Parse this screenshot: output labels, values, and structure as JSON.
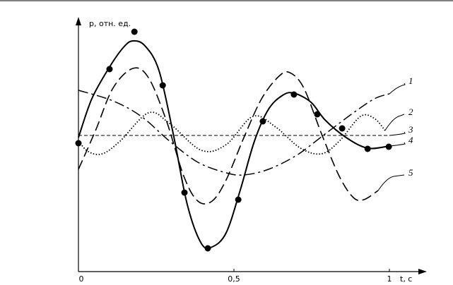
{
  "chart_data": {
    "type": "line",
    "y_label": "p, отн. ед.",
    "x_label": "t, с",
    "xlim": [
      0,
      1.11
    ],
    "ylim": [
      -1.93,
      1.64
    ],
    "xticks": [
      0,
      {
        "value": 0.5,
        "label": "0,5"
      },
      1
    ],
    "series": [
      {
        "name": "1",
        "style": "dashdot",
        "color": "#000000",
        "x": [
          0,
          0.111,
          0.202,
          0.293,
          0.384,
          0.475,
          0.532,
          0.611,
          0.702,
          0.793,
          0.884,
          0.952,
          1.0
        ],
        "values": [
          0.64,
          0.49,
          0.27,
          -0.08,
          -0.38,
          -0.53,
          -0.56,
          -0.48,
          -0.28,
          0.02,
          0.32,
          0.52,
          0.59
        ]
      },
      {
        "name": "2",
        "style": "dotted",
        "color": "#000000",
        "x": [
          0,
          0.032,
          0.077,
          0.134,
          0.225,
          0.293,
          0.395,
          0.475,
          0.561,
          0.634,
          0.714,
          0.782,
          0.839,
          0.907,
          0.952,
          0.986
        ],
        "values": [
          -0.08,
          -0.23,
          -0.26,
          -0.08,
          0.32,
          0.17,
          -0.21,
          -0.13,
          0.27,
          0.12,
          -0.18,
          -0.26,
          -0.08,
          0.27,
          0.24,
          0.07
        ]
      },
      {
        "name": "3",
        "style": "thindash",
        "color": "#000000",
        "x": [
          0,
          1.0
        ],
        "values": [
          0,
          0
        ]
      },
      {
        "name": "4",
        "style": "solid",
        "color": "#000000",
        "x": [
          0,
          0.043,
          0.1,
          0.145,
          0.175,
          0.214,
          0.259,
          0.305,
          0.35,
          0.395,
          0.43,
          0.475,
          0.52,
          0.566,
          0.611,
          0.657,
          0.693,
          0.748,
          0.793,
          0.861,
          0.93,
          1.0
        ],
        "values": [
          -0.03,
          0.52,
          0.97,
          1.25,
          1.34,
          1.27,
          0.92,
          0.02,
          -0.98,
          -1.53,
          -1.58,
          -1.38,
          -0.78,
          -0.08,
          0.37,
          0.57,
          0.6,
          0.47,
          0.22,
          -0.03,
          -0.18,
          -0.15
        ]
      },
      {
        "name": "5",
        "style": "dashed",
        "color": "#000000",
        "x": [
          0,
          0.055,
          0.111,
          0.175,
          0.225,
          0.282,
          0.339,
          0.384,
          0.43,
          0.475,
          0.532,
          0.589,
          0.645,
          0.68,
          0.725,
          0.782,
          0.839,
          0.884,
          0.918,
          0.964
        ],
        "values": [
          -0.48,
          0.07,
          0.67,
          0.95,
          0.82,
          0.22,
          -0.58,
          -0.93,
          -0.93,
          -0.63,
          -0.03,
          0.52,
          0.84,
          0.89,
          0.67,
          0.02,
          -0.58,
          -0.88,
          -0.91,
          -0.78
        ]
      },
      {
        "style": "points",
        "color": "#000000",
        "x": [
          0,
          0.1,
          0.18,
          0.271,
          0.341,
          0.416,
          0.514,
          0.593,
          0.693,
          0.768,
          0.848,
          0.93,
          0.998
        ],
        "values": [
          -0.11,
          0.94,
          1.47,
          0.71,
          -0.81,
          -1.6,
          -0.91,
          0.2,
          0.58,
          0.3,
          0.1,
          -0.19,
          -0.16
        ]
      }
    ]
  }
}
